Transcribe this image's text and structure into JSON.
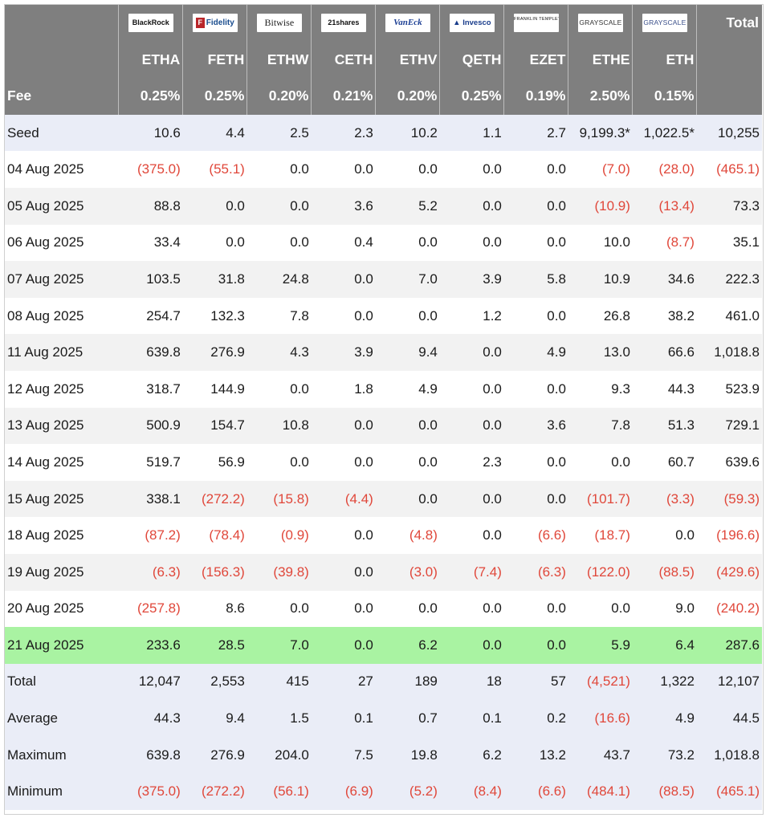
{
  "header": {
    "total_label": "Total",
    "fee_label": "Fee",
    "issuers": [
      {
        "logo_text": "BlackRock",
        "logo_icon": "blackrock-logo",
        "ticker": "ETHA",
        "fee": "0.25%"
      },
      {
        "logo_text": "Fidelity",
        "logo_icon": "fidelity-logo",
        "ticker": "FETH",
        "fee": "0.25%"
      },
      {
        "logo_text": "Bitwise",
        "logo_icon": "bitwise-logo",
        "ticker": "ETHW",
        "fee": "0.20%"
      },
      {
        "logo_text": "21shares",
        "logo_icon": "21shares-logo",
        "ticker": "CETH",
        "fee": "0.21%"
      },
      {
        "logo_text": "VanEck",
        "logo_icon": "vaneck-logo",
        "ticker": "ETHV",
        "fee": "0.20%"
      },
      {
        "logo_text": "Invesco",
        "logo_icon": "invesco-logo",
        "ticker": "QETH",
        "fee": "0.25%"
      },
      {
        "logo_text": "FRANKLIN TEMPLETON",
        "logo_icon": "franklin-templeton-logo",
        "ticker": "EZET",
        "fee": "0.19%"
      },
      {
        "logo_text": "GRAYSCALE",
        "logo_icon": "grayscale-logo",
        "ticker": "ETHE",
        "fee": "2.50%"
      },
      {
        "logo_text": "GRAYSCALE",
        "logo_icon": "grayscale-logo",
        "ticker": "ETH",
        "fee": "0.15%"
      }
    ]
  },
  "rows": [
    {
      "label": "Seed",
      "style": "seed",
      "values": [
        "10.6",
        "4.4",
        "2.5",
        "2.3",
        "10.2",
        "1.1",
        "2.7",
        "9,199.3*",
        "1,022.5*",
        "10,255"
      ]
    },
    {
      "label": "04 Aug 2025",
      "style": "white",
      "values": [
        "(375.0)",
        "(55.1)",
        "0.0",
        "0.0",
        "0.0",
        "0.0",
        "0.0",
        "(7.0)",
        "(28.0)",
        "(465.1)"
      ]
    },
    {
      "label": "05 Aug 2025",
      "style": "alt",
      "values": [
        "88.8",
        "0.0",
        "0.0",
        "3.6",
        "5.2",
        "0.0",
        "0.0",
        "(10.9)",
        "(13.4)",
        "73.3"
      ]
    },
    {
      "label": "06 Aug 2025",
      "style": "white",
      "values": [
        "33.4",
        "0.0",
        "0.0",
        "0.4",
        "0.0",
        "0.0",
        "0.0",
        "10.0",
        "(8.7)",
        "35.1"
      ]
    },
    {
      "label": "07 Aug 2025",
      "style": "alt",
      "values": [
        "103.5",
        "31.8",
        "24.8",
        "0.0",
        "7.0",
        "3.9",
        "5.8",
        "10.9",
        "34.6",
        "222.3"
      ]
    },
    {
      "label": "08 Aug 2025",
      "style": "white",
      "values": [
        "254.7",
        "132.3",
        "7.8",
        "0.0",
        "0.0",
        "1.2",
        "0.0",
        "26.8",
        "38.2",
        "461.0"
      ]
    },
    {
      "label": "11 Aug 2025",
      "style": "alt",
      "values": [
        "639.8",
        "276.9",
        "4.3",
        "3.9",
        "9.4",
        "0.0",
        "4.9",
        "13.0",
        "66.6",
        "1,018.8"
      ]
    },
    {
      "label": "12 Aug 2025",
      "style": "white",
      "values": [
        "318.7",
        "144.9",
        "0.0",
        "1.8",
        "4.9",
        "0.0",
        "0.0",
        "9.3",
        "44.3",
        "523.9"
      ]
    },
    {
      "label": "13 Aug 2025",
      "style": "alt",
      "values": [
        "500.9",
        "154.7",
        "10.8",
        "0.0",
        "0.0",
        "0.0",
        "3.6",
        "7.8",
        "51.3",
        "729.1"
      ]
    },
    {
      "label": "14 Aug 2025",
      "style": "white",
      "values": [
        "519.7",
        "56.9",
        "0.0",
        "0.0",
        "0.0",
        "2.3",
        "0.0",
        "0.0",
        "60.7",
        "639.6"
      ]
    },
    {
      "label": "15 Aug 2025",
      "style": "alt",
      "values": [
        "338.1",
        "(272.2)",
        "(15.8)",
        "(4.4)",
        "0.0",
        "0.0",
        "0.0",
        "(101.7)",
        "(3.3)",
        "(59.3)"
      ]
    },
    {
      "label": "18 Aug 2025",
      "style": "white",
      "values": [
        "(87.2)",
        "(78.4)",
        "(0.9)",
        "0.0",
        "(4.8)",
        "0.0",
        "(6.6)",
        "(18.7)",
        "0.0",
        "(196.6)"
      ]
    },
    {
      "label": "19 Aug 2025",
      "style": "alt",
      "values": [
        "(6.3)",
        "(156.3)",
        "(39.8)",
        "0.0",
        "(3.0)",
        "(7.4)",
        "(6.3)",
        "(122.0)",
        "(88.5)",
        "(429.6)"
      ]
    },
    {
      "label": "20 Aug 2025",
      "style": "white",
      "values": [
        "(257.8)",
        "8.6",
        "0.0",
        "0.0",
        "0.0",
        "0.0",
        "0.0",
        "0.0",
        "9.0",
        "(240.2)"
      ]
    },
    {
      "label": "21 Aug 2025",
      "style": "hl",
      "values": [
        "233.6",
        "28.5",
        "7.0",
        "0.0",
        "6.2",
        "0.0",
        "0.0",
        "5.9",
        "6.4",
        "287.6"
      ]
    },
    {
      "label": "Total",
      "style": "sum",
      "values": [
        "12,047",
        "2,553",
        "415",
        "27",
        "189",
        "18",
        "57",
        "(4,521)",
        "1,322",
        "12,107"
      ]
    },
    {
      "label": "Average",
      "style": "sum",
      "values": [
        "44.3",
        "9.4",
        "1.5",
        "0.1",
        "0.7",
        "0.1",
        "0.2",
        "(16.6)",
        "4.9",
        "44.5"
      ]
    },
    {
      "label": "Maximum",
      "style": "sum",
      "values": [
        "639.8",
        "276.9",
        "204.0",
        "7.5",
        "19.8",
        "6.2",
        "13.2",
        "43.7",
        "73.2",
        "1,018.8"
      ]
    },
    {
      "label": "Minimum",
      "style": "sum",
      "values": [
        "(375.0)",
        "(272.2)",
        "(56.1)",
        "(6.9)",
        "(5.2)",
        "(8.4)",
        "(6.6)",
        "(484.1)",
        "(88.5)",
        "(465.1)"
      ]
    }
  ],
  "colors": {
    "negative": "#e0473a",
    "header_bg": "#7f7f7f",
    "highlight_row": "#a9f3a2",
    "summary_bg": "#eaedf7"
  }
}
